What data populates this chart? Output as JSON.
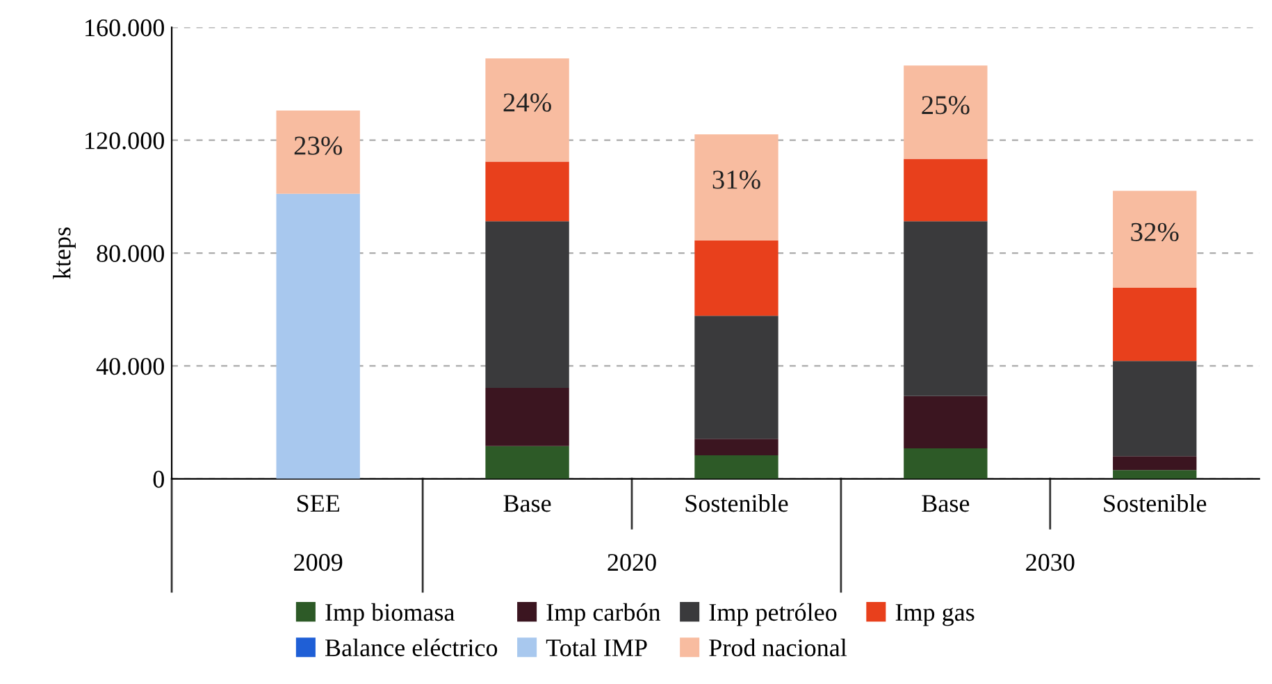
{
  "chart_data": {
    "type": "bar",
    "stacked": true,
    "ylabel": "kteps",
    "categories": [
      "SEE",
      "Base",
      "Sostenible",
      "Base",
      "Sostenible"
    ],
    "series": [
      {
        "name": "Imp biomasa",
        "color": "#2d5a27",
        "values": [
          null,
          11600,
          8300,
          10800,
          3100
        ]
      },
      {
        "name": "Imp carbón",
        "color": "#3b1520",
        "values": [
          null,
          20600,
          5900,
          18500,
          4900
        ]
      },
      {
        "name": "Imp petróleo",
        "color": "#3a3a3c",
        "values": [
          null,
          59100,
          43600,
          62000,
          33800
        ]
      },
      {
        "name": "Imp gas",
        "color": "#e8401c",
        "values": [
          null,
          21100,
          26700,
          22100,
          25900
        ]
      },
      {
        "name": "Balance eléctrico",
        "color": "#1f5fd6",
        "values": [
          null,
          null,
          null,
          null,
          null
        ]
      },
      {
        "name": "Total IMP",
        "color": "#a8c8ee",
        "values": [
          101000,
          null,
          null,
          null,
          null
        ]
      },
      {
        "name": "Prod nacional",
        "color": "#f8bca0",
        "values": [
          29500,
          36600,
          37600,
          33100,
          34400
        ]
      }
    ],
    "ylim": [
      0,
      160000
    ],
    "yticks": [
      0,
      {
        "value": 40000,
        "label": "40.000"
      },
      {
        "value": 80000,
        "label": "80.000"
      },
      {
        "value": 120000,
        "label": "120.000"
      },
      {
        "value": 160000,
        "label": "160.000"
      }
    ],
    "grid": "y",
    "legend": "bottom",
    "annotations": [
      "23%",
      "24%",
      "31%",
      "25%",
      "32%",
      "2009",
      "2020",
      "2030"
    ]
  }
}
